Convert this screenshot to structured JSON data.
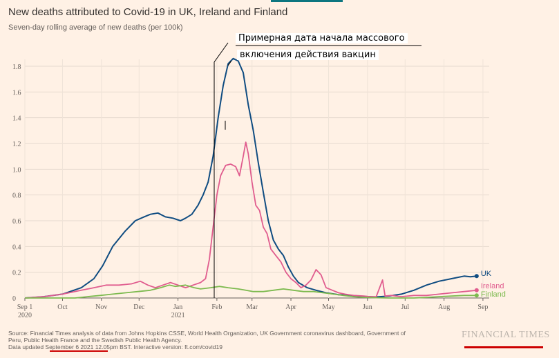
{
  "header": {
    "title": "New deaths attributed to Covid-19 in UK, Ireland and Finland",
    "subtitle": "Seven-day rolling average of new deaths (per 100k)"
  },
  "annotation": {
    "line1": "Примерная дата начала массового",
    "line2": "включения действия вакцин"
  },
  "footer": {
    "source_line1": "Source: Financial Times analysis of data from Johns Hopkins CSSE, World Health Organization, UK Government coronavirus dashboard, Government of",
    "source_line2": "Peru, Public Health France and the Swedish Public Health Agency.",
    "source_line3": "Data updated September 6 2021 12.05pm BST. Interactive version: ft.com/covid19",
    "brand": "FINANCIAL TIMES"
  },
  "colors": {
    "background": "#fff1e5",
    "uk": "#0f4c81",
    "ireland": "#e05c8e",
    "finland": "#7dba4f",
    "marker": "#cc0000"
  },
  "chart_data": {
    "type": "line",
    "ylim": [
      0,
      1.9
    ],
    "yticks": [
      "0",
      "0.2",
      "0.4",
      "0.6",
      "0.8",
      "1.0",
      "1.2",
      "1.4",
      "1.6",
      "1.8"
    ],
    "xticks": [
      {
        "month": "Sep 1",
        "year": "2020"
      },
      {
        "month": "Oct",
        "year": ""
      },
      {
        "month": "Nov",
        "year": ""
      },
      {
        "month": "Dec",
        "year": ""
      },
      {
        "month": "Jan",
        "year": "2021"
      },
      {
        "month": "Feb",
        "year": ""
      },
      {
        "month": "Mar",
        "year": ""
      },
      {
        "month": "Apr",
        "year": ""
      },
      {
        "month": "May",
        "year": ""
      },
      {
        "month": "Jun",
        "year": ""
      },
      {
        "month": "Jul",
        "year": ""
      },
      {
        "month": "Aug",
        "year": ""
      },
      {
        "month": "Sep",
        "year": ""
      }
    ],
    "grid": true,
    "series": [
      {
        "name": "UK",
        "color": "#0f4c81",
        "points": [
          [
            0,
            0
          ],
          [
            15,
            0.01
          ],
          [
            30,
            0.03
          ],
          [
            45,
            0.08
          ],
          [
            55,
            0.15
          ],
          [
            62,
            0.25
          ],
          [
            70,
            0.4
          ],
          [
            80,
            0.52
          ],
          [
            88,
            0.6
          ],
          [
            95,
            0.63
          ],
          [
            100,
            0.65
          ],
          [
            106,
            0.66
          ],
          [
            112,
            0.63
          ],
          [
            118,
            0.62
          ],
          [
            124,
            0.6
          ],
          [
            128,
            0.62
          ],
          [
            133,
            0.65
          ],
          [
            138,
            0.72
          ],
          [
            142,
            0.8
          ],
          [
            146,
            0.9
          ],
          [
            150,
            1.1
          ],
          [
            154,
            1.4
          ],
          [
            158,
            1.65
          ],
          [
            162,
            1.82
          ],
          [
            166,
            1.86
          ],
          [
            170,
            1.84
          ],
          [
            174,
            1.75
          ],
          [
            178,
            1.5
          ],
          [
            182,
            1.3
          ],
          [
            186,
            1.05
          ],
          [
            190,
            0.82
          ],
          [
            194,
            0.6
          ],
          [
            198,
            0.45
          ],
          [
            202,
            0.38
          ],
          [
            206,
            0.33
          ],
          [
            210,
            0.24
          ],
          [
            214,
            0.17
          ],
          [
            218,
            0.12
          ],
          [
            225,
            0.08
          ],
          [
            232,
            0.06
          ],
          [
            240,
            0.04
          ],
          [
            250,
            0.025
          ],
          [
            260,
            0.02
          ],
          [
            270,
            0.012
          ],
          [
            280,
            0.008
          ],
          [
            290,
            0.015
          ],
          [
            300,
            0.03
          ],
          [
            310,
            0.06
          ],
          [
            320,
            0.1
          ],
          [
            330,
            0.13
          ],
          [
            340,
            0.15
          ],
          [
            345,
            0.16
          ],
          [
            350,
            0.17
          ],
          [
            355,
            0.165
          ],
          [
            360,
            0.17
          ]
        ]
      },
      {
        "name": "Ireland",
        "color": "#e05c8e",
        "points": [
          [
            0,
            0
          ],
          [
            15,
            0.01
          ],
          [
            30,
            0.03
          ],
          [
            45,
            0.06
          ],
          [
            55,
            0.08
          ],
          [
            65,
            0.1
          ],
          [
            75,
            0.1
          ],
          [
            85,
            0.11
          ],
          [
            92,
            0.13
          ],
          [
            98,
            0.1
          ],
          [
            104,
            0.08
          ],
          [
            110,
            0.1
          ],
          [
            116,
            0.12
          ],
          [
            122,
            0.1
          ],
          [
            128,
            0.08
          ],
          [
            134,
            0.1
          ],
          [
            140,
            0.12
          ],
          [
            144,
            0.15
          ],
          [
            147,
            0.3
          ],
          [
            150,
            0.55
          ],
          [
            153,
            0.8
          ],
          [
            156,
            0.95
          ],
          [
            160,
            1.03
          ],
          [
            164,
            1.04
          ],
          [
            168,
            1.02
          ],
          [
            171,
            0.95
          ],
          [
            174,
            1.1
          ],
          [
            176,
            1.21
          ],
          [
            178,
            1.12
          ],
          [
            181,
            0.9
          ],
          [
            184,
            0.72
          ],
          [
            187,
            0.68
          ],
          [
            190,
            0.55
          ],
          [
            193,
            0.5
          ],
          [
            196,
            0.38
          ],
          [
            200,
            0.33
          ],
          [
            204,
            0.28
          ],
          [
            208,
            0.2
          ],
          [
            212,
            0.15
          ],
          [
            216,
            0.12
          ],
          [
            220,
            0.08
          ],
          [
            224,
            0.1
          ],
          [
            228,
            0.14
          ],
          [
            232,
            0.22
          ],
          [
            236,
            0.18
          ],
          [
            240,
            0.08
          ],
          [
            245,
            0.06
          ],
          [
            250,
            0.04
          ],
          [
            255,
            0.03
          ],
          [
            262,
            0.02
          ],
          [
            270,
            0.015
          ],
          [
            275,
            0.01
          ],
          [
            280,
            0.01
          ],
          [
            285,
            0.14
          ],
          [
            287,
            0.015
          ],
          [
            292,
            0.02
          ],
          [
            300,
            0.01
          ],
          [
            310,
            0.02
          ],
          [
            320,
            0.02
          ],
          [
            330,
            0.03
          ],
          [
            340,
            0.04
          ],
          [
            350,
            0.05
          ],
          [
            360,
            0.06
          ]
        ]
      },
      {
        "name": "Finland",
        "color": "#7dba4f",
        "points": [
          [
            0,
            0
          ],
          [
            20,
            0.0
          ],
          [
            40,
            0.0
          ],
          [
            50,
            0.01
          ],
          [
            60,
            0.02
          ],
          [
            70,
            0.03
          ],
          [
            80,
            0.04
          ],
          [
            90,
            0.05
          ],
          [
            100,
            0.06
          ],
          [
            108,
            0.08
          ],
          [
            115,
            0.1
          ],
          [
            120,
            0.09
          ],
          [
            128,
            0.1
          ],
          [
            135,
            0.08
          ],
          [
            140,
            0.07
          ],
          [
            148,
            0.08
          ],
          [
            155,
            0.09
          ],
          [
            162,
            0.08
          ],
          [
            170,
            0.07
          ],
          [
            176,
            0.06
          ],
          [
            182,
            0.05
          ],
          [
            190,
            0.05
          ],
          [
            198,
            0.06
          ],
          [
            206,
            0.07
          ],
          [
            214,
            0.06
          ],
          [
            222,
            0.05
          ],
          [
            230,
            0.05
          ],
          [
            238,
            0.04
          ],
          [
            246,
            0.03
          ],
          [
            254,
            0.02
          ],
          [
            262,
            0.01
          ],
          [
            270,
            0.005
          ],
          [
            280,
            0.002
          ],
          [
            290,
            0.0
          ],
          [
            300,
            0.0
          ],
          [
            310,
            0.0
          ],
          [
            320,
            0.005
          ],
          [
            330,
            0.01
          ],
          [
            340,
            0.015
          ],
          [
            350,
            0.02
          ],
          [
            360,
            0.02
          ]
        ]
      }
    ]
  }
}
